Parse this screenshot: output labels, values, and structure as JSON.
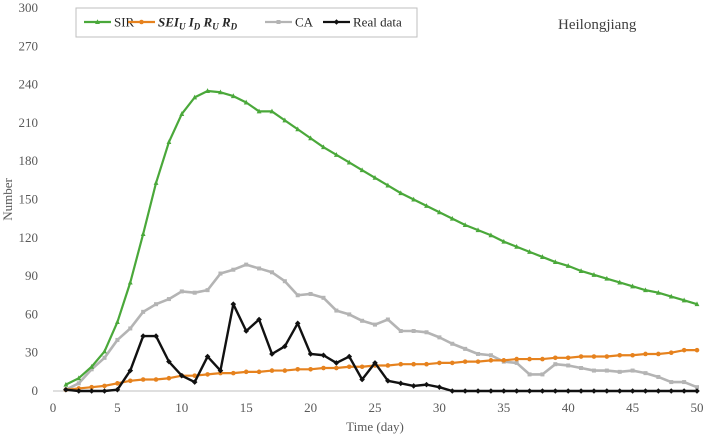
{
  "chart_data": {
    "type": "line",
    "annotation": "Heilongjiang",
    "xlabel": "Time (day)",
    "ylabel": "Number",
    "xlim": [
      0,
      50
    ],
    "ylim": [
      0,
      300
    ],
    "xticks": [
      "0",
      "5",
      "10",
      "15",
      "20",
      "25",
      "30",
      "35",
      "40",
      "45",
      "50"
    ],
    "yticks": [
      "0",
      "30",
      "60",
      "90",
      "120",
      "150",
      "180",
      "210",
      "240",
      "270",
      "300"
    ],
    "grid": false,
    "legend_position": "top-left",
    "colors": {
      "SIR": "#4aa83a",
      "SEIDIURURD": "#e6821e",
      "CA": "#b4b4b4",
      "Real": "#111111"
    },
    "series": [
      {
        "name": "SIR",
        "key": "SIR",
        "marker": "triangle",
        "x": [
          1,
          2,
          3,
          4,
          5,
          6,
          7,
          8,
          9,
          10,
          11,
          12,
          13,
          14,
          15,
          16,
          17,
          18,
          19,
          20,
          21,
          22,
          23,
          24,
          25,
          26,
          27,
          28,
          29,
          30,
          31,
          32,
          33,
          34,
          35,
          36,
          37,
          38,
          39,
          40,
          41,
          42,
          43,
          44,
          45,
          46,
          47,
          48,
          49,
          50
        ],
        "values": [
          5,
          10,
          19,
          31,
          54,
          85,
          123,
          163,
          195,
          217,
          230,
          235,
          234,
          231,
          226,
          219,
          219,
          212,
          205,
          198,
          191,
          185,
          179,
          173,
          167,
          161,
          155,
          150,
          145,
          140,
          135,
          130,
          126,
          122,
          117,
          113,
          109,
          105,
          101,
          98,
          94,
          91,
          88,
          85,
          82,
          79,
          77,
          74,
          71,
          68
        ]
      },
      {
        "name": "SEIDIURURD",
        "key": "SEIDIURURD",
        "marker": "circle",
        "label_parts": [
          {
            "t": "SEI",
            "sub": false
          },
          {
            "t": "U",
            "sub": true
          },
          {
            "t": " I",
            "sub": false
          },
          {
            "t": "D",
            "sub": true
          },
          {
            "t": " R",
            "sub": false
          },
          {
            "t": "U",
            "sub": true
          },
          {
            "t": " R",
            "sub": false
          },
          {
            "t": "D",
            "sub": true
          }
        ],
        "x": [
          1,
          2,
          3,
          4,
          5,
          6,
          7,
          8,
          9,
          10,
          11,
          12,
          13,
          14,
          15,
          16,
          17,
          18,
          19,
          20,
          21,
          22,
          23,
          24,
          25,
          26,
          27,
          28,
          29,
          30,
          31,
          32,
          33,
          34,
          35,
          36,
          37,
          38,
          39,
          40,
          41,
          42,
          43,
          44,
          45,
          46,
          47,
          48,
          49,
          50
        ],
        "values": [
          1,
          2,
          3,
          4,
          6,
          8,
          9,
          9,
          10,
          12,
          12,
          13,
          14,
          14,
          15,
          15,
          16,
          16,
          17,
          17,
          18,
          18,
          19,
          19,
          20,
          20,
          21,
          21,
          21,
          22,
          22,
          23,
          23,
          24,
          24,
          25,
          25,
          25,
          26,
          26,
          27,
          27,
          27,
          28,
          28,
          29,
          29,
          30,
          32,
          32
        ]
      },
      {
        "name": "CA",
        "key": "CA",
        "marker": "square",
        "x": [
          1,
          2,
          3,
          4,
          5,
          6,
          7,
          8,
          9,
          10,
          11,
          12,
          13,
          14,
          15,
          16,
          17,
          18,
          19,
          20,
          21,
          22,
          23,
          24,
          25,
          26,
          27,
          28,
          29,
          30,
          31,
          32,
          33,
          34,
          35,
          36,
          37,
          38,
          39,
          40,
          41,
          42,
          43,
          44,
          45,
          46,
          47,
          48,
          49,
          50
        ],
        "values": [
          1,
          6,
          17,
          26,
          40,
          49,
          62,
          68,
          72,
          78,
          77,
          79,
          92,
          95,
          99,
          96,
          93,
          86,
          75,
          76,
          73,
          63,
          60,
          55,
          52,
          56,
          47,
          47,
          46,
          42,
          37,
          33,
          29,
          28,
          23,
          22,
          13,
          13,
          21,
          20,
          18,
          16,
          16,
          15,
          16,
          14,
          11,
          7,
          7,
          3
        ]
      },
      {
        "name": "Real data",
        "key": "Real",
        "marker": "diamond",
        "x": [
          1,
          2,
          3,
          4,
          5,
          6,
          7,
          8,
          9,
          10,
          11,
          12,
          13,
          14,
          15,
          16,
          17,
          18,
          19,
          20,
          21,
          22,
          23,
          24,
          25,
          26,
          27,
          28,
          29,
          30,
          31,
          32,
          33,
          34,
          35,
          36,
          37,
          38,
          39,
          40,
          41,
          42,
          43,
          44,
          45,
          46,
          47,
          48,
          49,
          50
        ],
        "values": [
          1,
          0,
          0,
          0,
          1,
          16,
          43,
          43,
          23,
          12,
          7,
          27,
          16,
          68,
          47,
          56,
          29,
          35,
          53,
          29,
          28,
          22,
          27,
          9,
          22,
          8,
          6,
          4,
          5,
          3,
          0,
          0,
          0,
          0,
          0,
          0,
          0,
          0,
          0,
          0,
          0,
          0,
          0,
          0,
          0,
          0,
          0,
          0,
          0,
          0
        ]
      }
    ]
  }
}
